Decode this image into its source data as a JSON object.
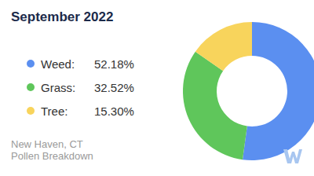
{
  "chart_data": {
    "type": "pie",
    "title": "September 2022",
    "categories": [
      "Weed:",
      "Grass:",
      "Tree:"
    ],
    "values": [
      52.18,
      32.52,
      15.3
    ],
    "value_labels": [
      "52.18%",
      "32.52%",
      "15.30%"
    ],
    "colors": [
      "#5b8ff0",
      "#5fc65b",
      "#f8d45c"
    ],
    "legend": "left",
    "annotations": [
      "New Haven, CT",
      "Pollen Breakdown"
    ]
  }
}
